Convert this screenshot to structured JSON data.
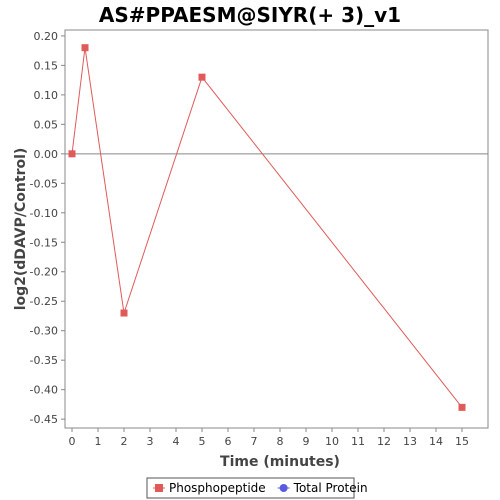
{
  "chart_data": {
    "type": "line",
    "title": "AS#PPAESM@SIYR(+ 3)_v1",
    "xlabel": "Time (minutes)",
    "ylabel": "log2(dDAVP/Control)",
    "xlim": [
      0,
      16
    ],
    "ylim": [
      -0.465,
      0.21
    ],
    "x_ticks": [
      0,
      1,
      2,
      3,
      4,
      5,
      6,
      7,
      8,
      9,
      10,
      11,
      12,
      13,
      14,
      15
    ],
    "y_ticks": [
      0.2,
      0.15,
      0.1,
      0.05,
      0.0,
      -0.05,
      -0.1,
      -0.15,
      -0.2,
      -0.25,
      -0.3,
      -0.35,
      -0.4,
      -0.45
    ],
    "grid": false,
    "legend_position": "bottom-center",
    "series": [
      {
        "name": "Phosphopeptide",
        "color": "#e05a5a",
        "marker": "square",
        "x": [
          0,
          0.5,
          2,
          5,
          15
        ],
        "y": [
          0.0,
          0.18,
          -0.27,
          0.13,
          -0.43
        ]
      },
      {
        "name": "Total Protein",
        "color": "#5a5ae0",
        "marker": "circle",
        "x": [],
        "y": []
      }
    ]
  }
}
